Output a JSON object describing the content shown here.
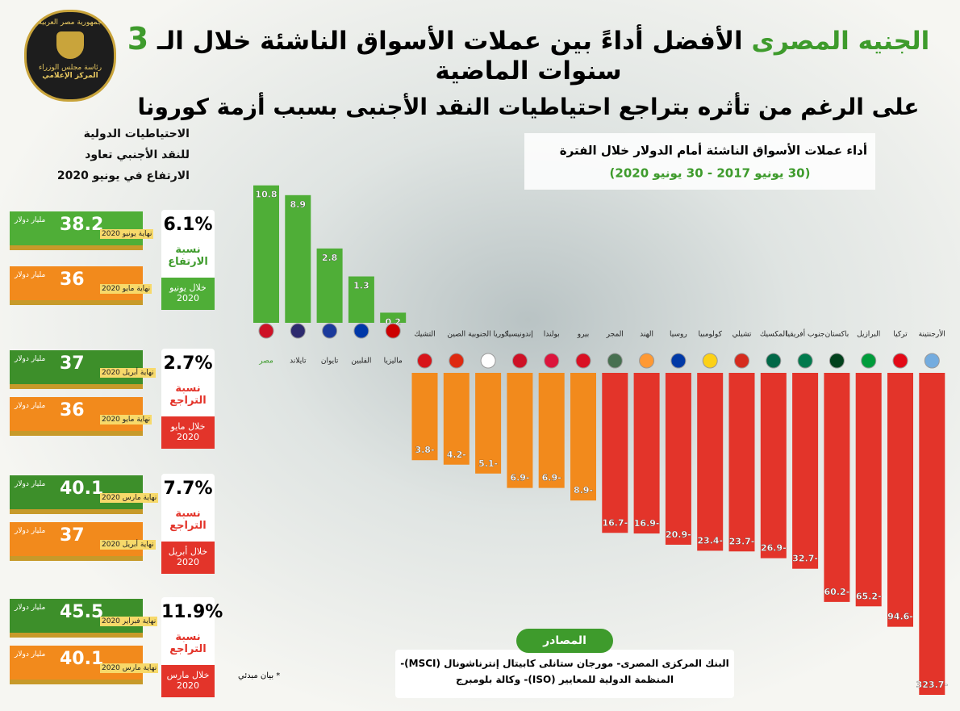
{
  "logo": {
    "lines": [
      "جمهورية مصر العربية",
      "رئاسة مجلس الوزراء",
      "المركز الإعلامي"
    ]
  },
  "header": {
    "line1_a": "الجنيه المصرى",
    "line1_b": "الأفضل أداءً بين عملات الأسواق الناشئة خلال الـ",
    "line1_c": "3",
    "line1_d": "سنوات الماضية",
    "line2": "على الرغم من تأثره بتراجع احتياطيات النقد الأجنبى بسبب أزمة كورونا"
  },
  "reserves": {
    "heading": [
      "الاحتياطيات الدولية",
      "للنقد الأجنبي تعاود",
      "الارتفاع في يونيو 2020"
    ],
    "unit": "مليار دولار",
    "blocks": [
      {
        "pct": "6.1%",
        "label": "نسبة الارتفاع",
        "period": "خلال يونيو 2020",
        "top": {
          "value": "38.2",
          "date": "نهاية يونيو 2020"
        },
        "bottom": {
          "value": "36",
          "date": "نهاية مايو 2020"
        }
      },
      {
        "pct": "2.7%",
        "label": "نسبة التراجع",
        "period": "خلال مايو 2020",
        "top": {
          "value": "37",
          "date": "نهاية أبريل 2020"
        },
        "bottom": {
          "value": "36",
          "date": "نهاية مايو 2020"
        }
      },
      {
        "pct": "7.7%",
        "label": "نسبة التراجع",
        "period": "خلال أبريل 2020",
        "top": {
          "value": "40.1",
          "date": "نهاية مارس 2020"
        },
        "bottom": {
          "value": "37",
          "date": "نهاية أبريل 2020"
        }
      },
      {
        "pct": "11.9%",
        "label": "نسبة التراجع",
        "period": "خلال مارس 2020",
        "top": {
          "value": "45.5",
          "date": "نهاية فبراير 2020"
        },
        "bottom": {
          "value": "40.1",
          "date": "نهاية مارس 2020"
        }
      }
    ],
    "note": "* بيان مبدئي"
  },
  "sources": {
    "title": "المصادر",
    "lines": [
      "البنك المركزى المصرى- مورجان ستانلى كابيتال إنترناشونال (MSCI)-",
      "المنظمة الدولية للمعايير (ISO)- وكالة بلومبرج"
    ]
  },
  "chart_data": {
    "type": "bar",
    "title": "أداء عملات الأسواق الناشئة أمام الدولار خلال الفترة",
    "subtitle": "(30 يونيو 2017 - 30 يونيو 2020)",
    "scale": "symlog",
    "categories": [
      "مصر",
      "تايلاند",
      "تايوان",
      "الفلبين",
      "ماليزيا",
      "التشيك",
      "الصين",
      "كوريا الجنوبية",
      "إندونيسيا",
      "بولندا",
      "بيرو",
      "المجر",
      "الهند",
      "روسيا",
      "كولومبيا",
      "تشيلي",
      "المكسيك",
      "جنوب أفريقيا",
      "باكستان",
      "البرازيل",
      "تركيا",
      "الأرجنتينة"
    ],
    "values": [
      10.8,
      8.9,
      2.8,
      1.3,
      0.2,
      -3.8,
      -4.2,
      -5.1,
      -6.9,
      -6.9,
      -8.9,
      -16.7,
      -16.9,
      -20.9,
      -23.4,
      -23.7,
      -26.9,
      -32.7,
      -60.2,
      -65.2,
      -94.6,
      -323.7
    ],
    "value_labels": [
      "10.8",
      "8.9",
      "2.8",
      "1.3",
      "0.2",
      "3.8-",
      "4.2-",
      "5.1-",
      "6.9-",
      "6.9-",
      "8.9-",
      "16.7-",
      "16.9-",
      "20.9-",
      "23.4-",
      "23.7-",
      "26.9-",
      "32.7-",
      "60.2-",
      "65.2-",
      "94.6-",
      "323.7-"
    ],
    "colors": [
      "#4fae37",
      "#4fae37",
      "#4fae37",
      "#4fae37",
      "#4fae37",
      "#f28a1c",
      "#f28a1c",
      "#f28a1c",
      "#f28a1c",
      "#f28a1c",
      "#f28a1c",
      "#e3342a",
      "#e3342a",
      "#e3342a",
      "#e3342a",
      "#e3342a",
      "#e3342a",
      "#e3342a",
      "#e3342a",
      "#e3342a",
      "#e3342a",
      "#e3342a"
    ]
  }
}
